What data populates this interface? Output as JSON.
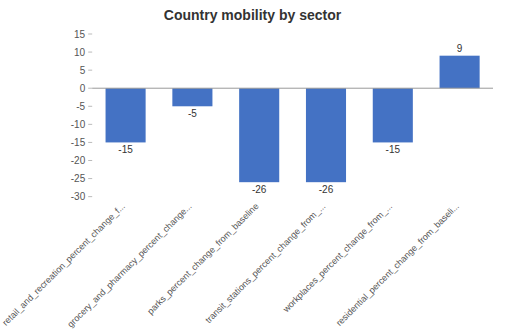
{
  "chart_data": {
    "type": "bar",
    "title": "Country mobility by sector",
    "categories": [
      "retail_and_recreation_percent_change_f...",
      "grocery_and_pharmacy_percent_change...",
      "parks_percent_change_from_baseline",
      "transit_stations_percent_change_from_...",
      "workplaces_percent_change_from_...",
      "residential_percent_change_from_baseli..."
    ],
    "values": [
      -15,
      -5,
      -26,
      -26,
      -15,
      9
    ],
    "color": "#4472C4",
    "ylim": [
      -30,
      15
    ],
    "yticks": [
      -30,
      -25,
      -20,
      -15,
      -10,
      -5,
      0,
      5,
      10,
      15
    ],
    "grid": false,
    "data_labels": true
  }
}
